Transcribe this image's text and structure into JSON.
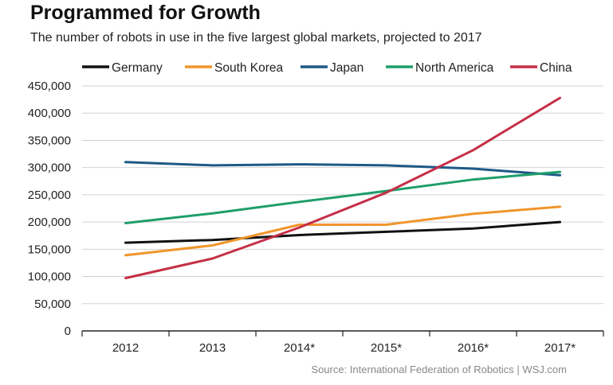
{
  "chart_data": {
    "type": "line",
    "title": "Programmed for Growth",
    "subtitle": "The number of robots in use in the five largest global markets, projected to 2017",
    "categories": [
      "2012",
      "2013",
      "2014*",
      "2015*",
      "2016*",
      "2017*"
    ],
    "ylim": [
      0,
      450000
    ],
    "yticks": [
      0,
      50000,
      100000,
      150000,
      200000,
      250000,
      300000,
      350000,
      400000,
      450000
    ],
    "ytick_labels": [
      "0",
      "50,000",
      "100,000",
      "150,000",
      "200,000",
      "250,000",
      "300,000",
      "350,000",
      "400,000",
      "450,000"
    ],
    "grid": true,
    "legend_position": "top",
    "series": [
      {
        "name": "Germany",
        "color": "#111111",
        "values": [
          162000,
          167000,
          176000,
          182000,
          188000,
          200000
        ]
      },
      {
        "name": "South Korea",
        "color": "#f0952c",
        "values": [
          139000,
          157000,
          195000,
          195000,
          215000,
          228000
        ]
      },
      {
        "name": "Japan",
        "color": "#1d5a86",
        "values": [
          310000,
          304000,
          306000,
          304000,
          298000,
          286000
        ]
      },
      {
        "name": "North America",
        "color": "#1f9e6a",
        "values": [
          198000,
          216000,
          237000,
          257000,
          278000,
          292000
        ]
      },
      {
        "name": "China",
        "color": "#c52f46",
        "values": [
          97000,
          133000,
          190000,
          254000,
          332000,
          428000
        ]
      }
    ],
    "source": "Source: International Federation of Robotics  |  WSJ.com"
  }
}
